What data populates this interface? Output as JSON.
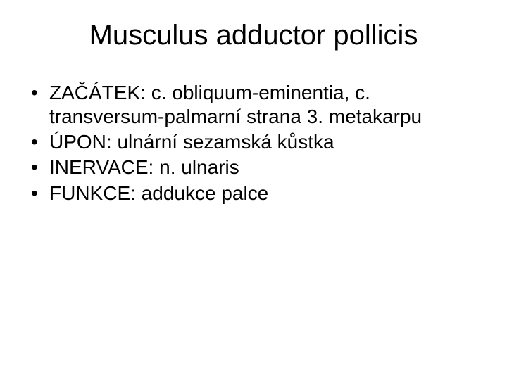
{
  "title": "Musculus adductor pollicis",
  "bullets": [
    "ZAČÁTEK: c. obliquum-eminentia, c. transversum-palmarní strana 3. metakarpu",
    "ÚPON: ulnární sezamská kůstka",
    "INERVACE: n. ulnaris",
    "FUNKCE: addukce palce"
  ],
  "colors": {
    "background": "#ffffff",
    "text": "#000000"
  },
  "typography": {
    "title_fontsize": 40,
    "body_fontsize": 28,
    "font_family": "Arial"
  }
}
